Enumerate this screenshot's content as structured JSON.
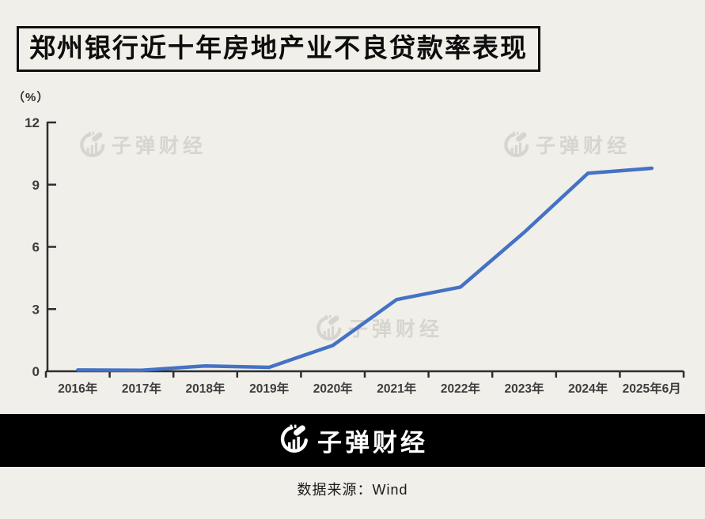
{
  "page": {
    "background_color": "#f1efe9"
  },
  "header": {
    "title": "郑州银行近十年房地产业不良贷款率表现"
  },
  "chart_data": {
    "type": "line",
    "title": "郑州银行近十年房地产业不良贷款率表现",
    "unit_label": "（%）",
    "categories": [
      "2016年",
      "2017年",
      "2018年",
      "2019年",
      "2020年",
      "2021年",
      "2022年",
      "2023年",
      "2024年",
      "2025年6月"
    ],
    "values": [
      0.06,
      0.05,
      0.26,
      0.19,
      1.25,
      3.46,
      4.06,
      6.7,
      9.55,
      9.79
    ],
    "ylim": [
      0,
      12
    ],
    "y_ticks": [
      0,
      3,
      6,
      9,
      12
    ],
    "xlabel": "",
    "ylabel": "（%）",
    "grid": false,
    "legend": "none",
    "line_color": "#4472c4",
    "axis_color": "#2e2e2e",
    "tick_label_color": "#3d3d3d"
  },
  "watermark": {
    "text": "子弹财经",
    "icon": "bullet-finance-logo-icon",
    "color": "#d7d5cf"
  },
  "footer": {
    "brand": "子弹财经",
    "source": "数据来源：Wind",
    "bar_color": "#000000"
  }
}
